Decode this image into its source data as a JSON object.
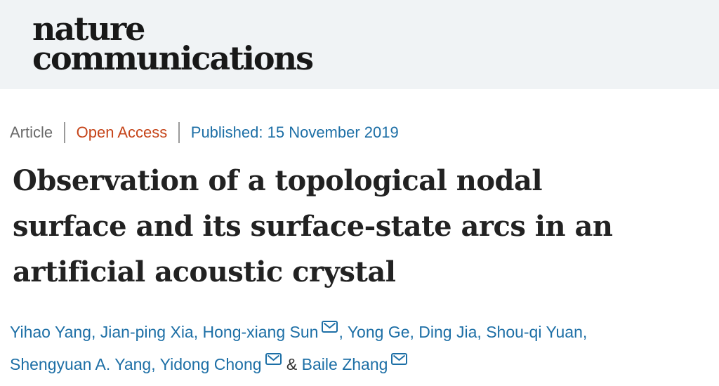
{
  "masthead": {
    "journal_line1": "nature",
    "journal_line2": "communications"
  },
  "meta": {
    "type_label": "Article",
    "access_label": "Open Access",
    "published_label": "Published: 15 November 2019"
  },
  "article": {
    "title_text": "Observation of a topological nodal\nsurface and its surface-state arcs in an\nartificial acoustic crystal"
  },
  "authors": {
    "list": [
      {
        "name": "Yihao Yang",
        "email_icon": false,
        "separator": ", "
      },
      {
        "name": "Jian-ping Xia",
        "email_icon": false,
        "separator": ", "
      },
      {
        "name": "Hong-xiang Sun",
        "email_icon": true,
        "separator": ", "
      },
      {
        "name": "Yong Ge",
        "email_icon": false,
        "separator": ", "
      },
      {
        "name": "Ding Jia",
        "email_icon": false,
        "separator": ", "
      },
      {
        "name": "Shou-qi Yuan",
        "email_icon": false,
        "separator": ",",
        "break_after": true
      },
      {
        "name": "Shengyuan A. Yang",
        "email_icon": false,
        "separator": ", "
      },
      {
        "name": "Yidong Chong",
        "email_icon": true,
        "separator": " & "
      },
      {
        "name": "Baile Zhang",
        "email_icon": true,
        "separator": ""
      }
    ]
  },
  "icons": {
    "email": "envelope-icon"
  },
  "colors": {
    "masthead_band_bg": "#f0f3f5",
    "logo_text": "#181818",
    "meta_gray": "#6b6b6b",
    "meta_divider": "#9a9a9a",
    "open_access_red": "#c6451a",
    "link_blue": "#1d6fa6",
    "title_dark": "#222222",
    "ampersand_dark": "#333333"
  }
}
